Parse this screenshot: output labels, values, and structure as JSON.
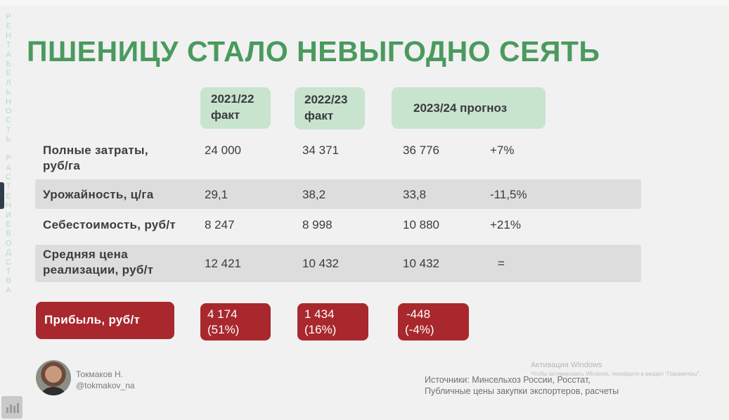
{
  "side_label": "РЕНТАБЕЛЬНОСТЬ РАСТЕНИЕВОДСТВА",
  "title": "ПШЕНИЦУ СТАЛО НЕВЫГОДНО СЕЯТЬ",
  "columns": [
    {
      "line1": "2021/22",
      "line2": "факт"
    },
    {
      "line1": "2022/23",
      "line2": "факт"
    },
    {
      "line1": "2023/24 прогноз",
      "line2": ""
    }
  ],
  "rows": [
    {
      "label_line1": "Полные затраты,",
      "label_line2": "руб/га",
      "v1": "24 000",
      "v2": "34 371",
      "v3": "36 776",
      "change": "+7%"
    },
    {
      "label_line1": "Урожайность, ц/га",
      "label_line2": "",
      "v1": "29,1",
      "v2": "38,2",
      "v3": "33,8",
      "change": "-11,5%"
    },
    {
      "label_line1": "Себестоимость, руб/т",
      "label_line2": "",
      "v1": "8 247",
      "v2": "8 998",
      "v3": "10 880",
      "change": "+21%"
    },
    {
      "label_line1": "Средняя цена",
      "label_line2": "реализации, руб/т",
      "v1": "12 421",
      "v2": "10 432",
      "v3": "10 432",
      "change": "="
    }
  ],
  "profit": {
    "label": "Прибыль, руб/т",
    "values": [
      {
        "line1": "4 174",
        "line2": "(51%)"
      },
      {
        "line1": "1 434",
        "line2": "(16%)"
      },
      {
        "line1": "-448",
        "line2": "(-4%)"
      }
    ]
  },
  "author": {
    "name": "Токмаков Н.",
    "handle": "@tokmakov_na"
  },
  "sources": {
    "line1": "Источники: Минсельхоз России, Росстат,",
    "line2": "Публичные цены закупки экспортеров, расчеты"
  },
  "windows_activation": {
    "title": "Активация Windows",
    "subtitle": "Чтобы активировать Windows, перейдите в раздел \"Параметры\"."
  },
  "colors": {
    "title": "#4a9a5e",
    "header_bg": "#c8e4cf",
    "profit_bg": "#a8282d",
    "row_alt_bg": "#dddddd"
  }
}
